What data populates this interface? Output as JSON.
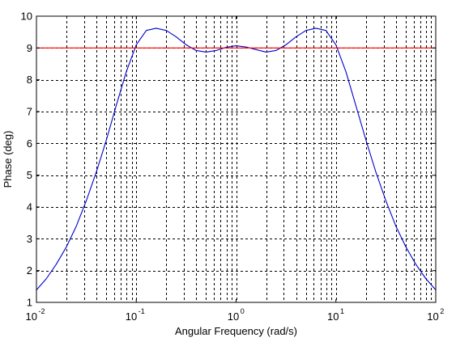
{
  "chart_data": {
    "type": "line",
    "title": "",
    "xlabel": "Angular Frequency  (rad/s)",
    "ylabel": "Phase (deg)",
    "xscale": "log",
    "xlim": [
      0.01,
      100
    ],
    "ylim": [
      1,
      10
    ],
    "grid": true,
    "x_ticks": [
      {
        "base": "10",
        "exp": "-2"
      },
      {
        "base": "10",
        "exp": "-1"
      },
      {
        "base": "10",
        "exp": "0"
      },
      {
        "base": "10",
        "exp": "1"
      },
      {
        "base": "10",
        "exp": "2"
      }
    ],
    "y_ticks": [
      "1",
      "2",
      "3",
      "4",
      "5",
      "6",
      "7",
      "8",
      "9",
      "10"
    ],
    "series": [
      {
        "color": "#0000cc",
        "x": [
          0.01,
          0.0126,
          0.0158,
          0.02,
          0.0251,
          0.0316,
          0.0398,
          0.0501,
          0.0631,
          0.0794,
          0.1,
          0.126,
          0.158,
          0.2,
          0.251,
          0.316,
          0.398,
          0.501,
          0.631,
          0.794,
          1,
          1.26,
          1.58,
          2,
          2.51,
          3.16,
          3.98,
          5.01,
          6.31,
          7.94,
          10,
          12.6,
          15.8,
          20,
          25.1,
          31.6,
          39.8,
          50.1,
          63.1,
          79.4,
          100
        ],
        "values": [
          1.39,
          1.75,
          2.2,
          2.75,
          3.4,
          4.2,
          5.1,
          6.1,
          7.2,
          8.25,
          9.1,
          9.55,
          9.62,
          9.55,
          9.35,
          9.1,
          8.92,
          8.87,
          8.92,
          9.02,
          9.07,
          9.03,
          8.95,
          8.87,
          8.92,
          9.1,
          9.35,
          9.55,
          9.62,
          9.55,
          9.1,
          8.25,
          7.2,
          6.1,
          5.1,
          4.2,
          3.4,
          2.75,
          2.2,
          1.75,
          1.39
        ]
      },
      {
        "color": "#ff0000",
        "x": [
          0.01,
          100
        ],
        "values": [
          9,
          9
        ]
      }
    ]
  }
}
